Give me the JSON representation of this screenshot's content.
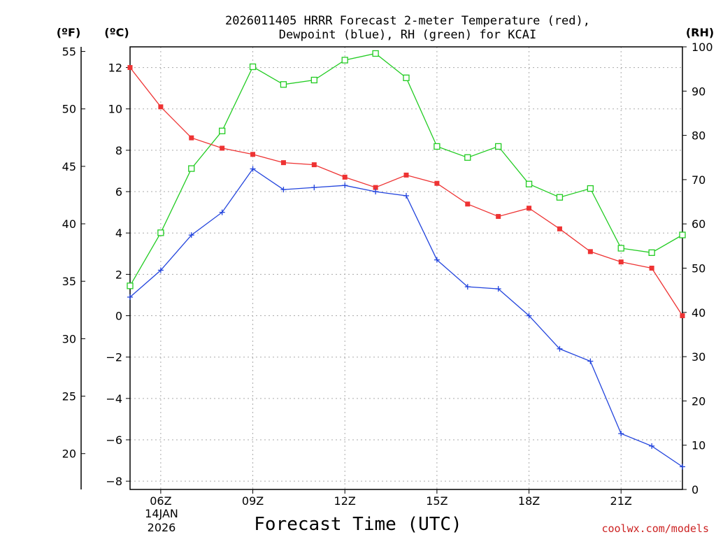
{
  "chart_data": {
    "type": "line",
    "title_line1": "2026011405 HRRR Forecast 2-meter Temperature (red),",
    "title_line2": "Dewpoint (blue), RH (green) for KCAI",
    "xlabel": "Forecast Time (UTC)",
    "credit": "coolwx.com/models",
    "left_outer_unit": "(ºF)",
    "left_inner_unit": "(ºC)",
    "right_unit": "(RH)",
    "date_line1": "14JAN",
    "date_line2": "2026",
    "x_hours": [
      5,
      6,
      7,
      8,
      9,
      10,
      11,
      12,
      13,
      14,
      15,
      16,
      17,
      18,
      19,
      20,
      21,
      22,
      23
    ],
    "x_ticks": [
      {
        "hour": 6,
        "label": "06Z"
      },
      {
        "hour": 9,
        "label": "09Z"
      },
      {
        "hour": 12,
        "label": "12Z"
      },
      {
        "hour": 15,
        "label": "15Z"
      },
      {
        "hour": 18,
        "label": "18Z"
      },
      {
        "hour": 21,
        "label": "21Z"
      }
    ],
    "xlim": [
      5,
      23
    ],
    "c_axis": {
      "range": [
        -8.4,
        13.0
      ],
      "ticks": [
        -8,
        -6,
        -4,
        -2,
        0,
        2,
        4,
        6,
        8,
        10,
        12
      ]
    },
    "f_axis": {
      "ticks": [
        20,
        25,
        30,
        35,
        40,
        45,
        50,
        55
      ]
    },
    "rh_axis": {
      "range": [
        0,
        100
      ],
      "ticks": [
        0,
        10,
        20,
        30,
        40,
        50,
        60,
        70,
        80,
        90,
        100
      ]
    },
    "colors": {
      "temperature": "#ee3333",
      "dewpoint": "#2244dd",
      "rh": "#22cc22",
      "grid": "#aaaaaa"
    },
    "series": [
      {
        "name": "Temperature",
        "units": "C",
        "values": [
          12.0,
          10.1,
          8.6,
          8.1,
          7.8,
          7.4,
          7.3,
          6.7,
          6.2,
          6.8,
          6.4,
          5.4,
          4.8,
          5.2,
          4.2,
          3.1,
          2.6,
          2.3,
          0.0
        ]
      },
      {
        "name": "Dewpoint",
        "units": "C",
        "values": [
          0.9,
          2.2,
          3.9,
          5.0,
          7.1,
          6.1,
          6.2,
          6.3,
          6.0,
          5.8,
          2.7,
          1.4,
          1.3,
          0.0,
          -1.6,
          -2.2,
          -5.7,
          -6.3,
          -7.3
        ]
      },
      {
        "name": "RH",
        "units": "%",
        "values": [
          46,
          58,
          72.5,
          81,
          95.5,
          91.5,
          92.5,
          97,
          98.5,
          93,
          77.5,
          75,
          77.5,
          69,
          66,
          68,
          54.5,
          53.5,
          57.5
        ]
      }
    ]
  }
}
